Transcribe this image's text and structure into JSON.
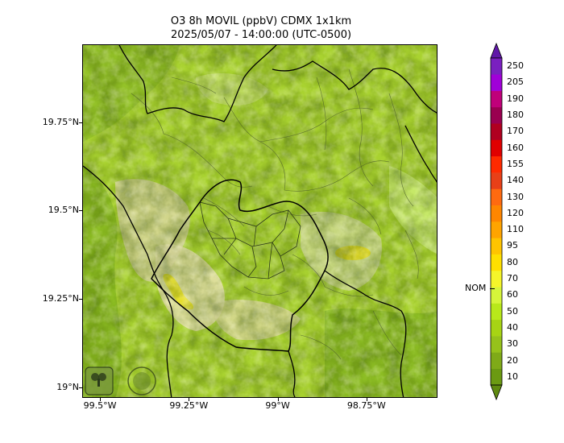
{
  "title": {
    "line1": "O3 8h MOVIL (ppbV) CDMX 1x1km",
    "line2": "2025/05/07 - 14:00:00 (UTC-0500)"
  },
  "axes": {
    "y_ticks": [
      {
        "label": "19.75°N",
        "value": 19.75
      },
      {
        "label": "19.5°N",
        "value": 19.5
      },
      {
        "label": "19.25°N",
        "value": 19.25
      },
      {
        "label": "19°N",
        "value": 19.0
      }
    ],
    "x_ticks": [
      {
        "label": "99.5°W",
        "value": -99.5
      },
      {
        "label": "99.25°W",
        "value": -99.25
      },
      {
        "label": "99°W",
        "value": -99.0
      },
      {
        "label": "98.75°W",
        "value": -98.75
      }
    ],
    "lat_range": [
      18.97,
      19.97
    ],
    "lon_range": [
      -99.55,
      -98.55
    ]
  },
  "colorbar": {
    "labels": [
      "10",
      "20",
      "30",
      "40",
      "50",
      "60",
      "70",
      "80",
      "95",
      "110",
      "120",
      "130",
      "140",
      "155",
      "160",
      "170",
      "180",
      "190",
      "205",
      "250"
    ],
    "colors": [
      "#6b9a12",
      "#7faa18",
      "#96c21b",
      "#a7d414",
      "#b8e81a",
      "#d6f53a",
      "#f5f52a",
      "#ffe000",
      "#ffc400",
      "#ffa400",
      "#ff8600",
      "#ff6a10",
      "#e84018",
      "#ff2a00",
      "#e00000",
      "#b00020",
      "#9a0050",
      "#c0007a",
      "#a000d8",
      "#7a20c0"
    ],
    "under_color": "#5f8a10",
    "over_color": "#6018a8",
    "nom_label": "NOM",
    "nom_value": 70
  },
  "logos": {
    "left": "SEDEMA",
    "right": "CIUDAD DE MÉXICO"
  }
}
